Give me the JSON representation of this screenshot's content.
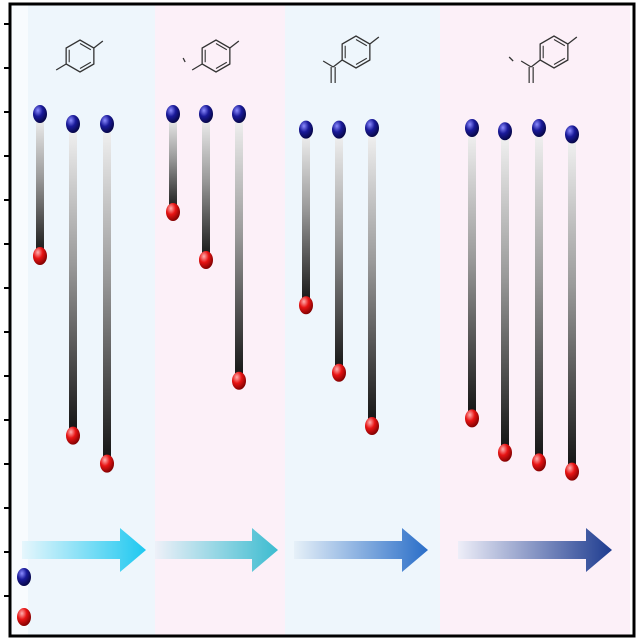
{
  "colors": {
    "panel_blue": "#eef6fc",
    "panel_pink": "#fcf0f8",
    "frame": "#000000",
    "ball_blue": "#12127a",
    "ball_red": "#e01010"
  },
  "panels": [
    {
      "molecule": "toluene",
      "arrow": {
        "from": "#e6f6fc",
        "to": "#1ec8f0"
      },
      "bars": [
        {
          "top_level": 0.0,
          "bottom_level": 0.355
        },
        {
          "top_level": 0.025,
          "bottom_level": 0.804
        },
        {
          "top_level": 0.025,
          "bottom_level": 0.874
        }
      ]
    },
    {
      "molecule": "methyl-toluene",
      "arrow": {
        "from": "#eef0f8",
        "to": "#3cbcd0"
      },
      "bars": [
        {
          "top_level": 0.0,
          "bottom_level": 0.245
        },
        {
          "top_level": 0.0,
          "bottom_level": 0.365
        },
        {
          "top_level": 0.0,
          "bottom_level": 0.667
        }
      ]
    },
    {
      "molecule": "acetyl-toluene",
      "arrow": {
        "from": "#e6f0f8",
        "to": "#2a6ec8"
      },
      "bars": [
        {
          "top_level": 0.039,
          "bottom_level": 0.478
        },
        {
          "top_level": 0.039,
          "bottom_level": 0.647
        },
        {
          "top_level": 0.035,
          "bottom_level": 0.78
        }
      ]
    },
    {
      "molecule": "methyl-acetyl-toluene",
      "arrow": {
        "from": "#eeeef8",
        "to": "#1e3c90"
      },
      "bars": [
        {
          "top_level": 0.035,
          "bottom_level": 0.761
        },
        {
          "top_level": 0.043,
          "bottom_level": 0.847
        },
        {
          "top_level": 0.035,
          "bottom_level": 0.871
        },
        {
          "top_level": 0.051,
          "bottom_level": 0.894
        }
      ]
    }
  ],
  "legend": [
    {
      "icon": "blue-sphere-icon"
    },
    {
      "icon": "red-sphere-icon"
    }
  ]
}
